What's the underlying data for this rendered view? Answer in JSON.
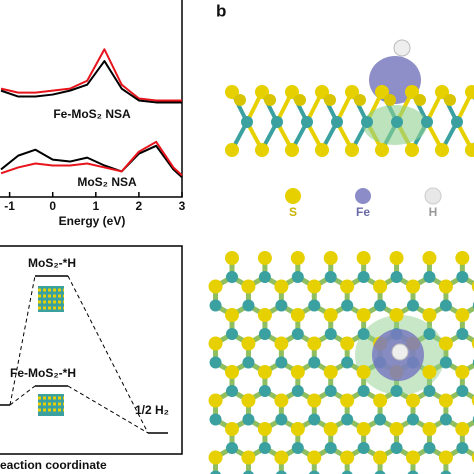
{
  "panel_label": "b",
  "chart_data": {
    "type": "line",
    "xlabel": "Energy (eV)",
    "x": [
      -1.2,
      -0.8,
      -0.4,
      0,
      0.4,
      0.8,
      1.2,
      1.6,
      2.0,
      2.4,
      2.8,
      3.0
    ],
    "xlim": [
      -1.2,
      3
    ],
    "xticks": [
      -1,
      0,
      1,
      2,
      3
    ],
    "ylim": [
      0,
      10
    ],
    "series": [
      {
        "color": "#e8141c",
        "values": [
          5.5,
          5.3,
          5.3,
          5.4,
          5.5,
          5.9,
          7.5,
          5.7,
          5.0,
          4.9,
          4.9,
          4.9
        ]
      },
      {
        "color": "#000000",
        "values": [
          5.4,
          5.1,
          5.1,
          5.2,
          5.4,
          5.7,
          6.9,
          5.5,
          4.9,
          4.8,
          4.8,
          4.8
        ]
      },
      {
        "color": "#000000",
        "values": [
          1.4,
          2.1,
          2.4,
          1.9,
          1.8,
          2.0,
          1.6,
          1.3,
          2.2,
          2.6,
          1.4,
          1.0
        ]
      },
      {
        "color": "#e8141c",
        "values": [
          1.2,
          1.5,
          1.7,
          1.6,
          1.6,
          1.7,
          1.5,
          1.3,
          2.3,
          2.8,
          1.5,
          1.1
        ]
      }
    ],
    "annotations": [
      "Fe-MoS₂ NSA",
      "MoS₂ NSA"
    ]
  },
  "energy_diagram": {
    "states": [
      "MoS₂-*H",
      "Fe-MoS₂-*H",
      "1/2 H₂"
    ],
    "xlabel": "eaction coordinate"
  },
  "legend": [
    "S",
    "Fe",
    "H"
  ]
}
